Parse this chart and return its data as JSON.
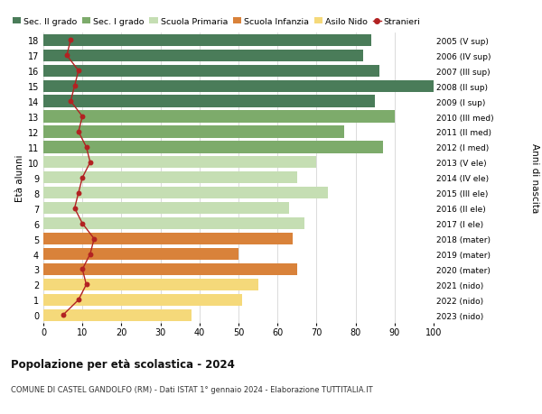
{
  "ages": [
    18,
    17,
    16,
    15,
    14,
    13,
    12,
    11,
    10,
    9,
    8,
    7,
    6,
    5,
    4,
    3,
    2,
    1,
    0
  ],
  "anni_nascita": [
    "2005 (V sup)",
    "2006 (IV sup)",
    "2007 (III sup)",
    "2008 (II sup)",
    "2009 (I sup)",
    "2010 (III med)",
    "2011 (II med)",
    "2012 (I med)",
    "2013 (V ele)",
    "2014 (IV ele)",
    "2015 (III ele)",
    "2016 (II ele)",
    "2017 (I ele)",
    "2018 (mater)",
    "2019 (mater)",
    "2020 (mater)",
    "2021 (nido)",
    "2022 (nido)",
    "2023 (nido)"
  ],
  "bar_values": [
    84,
    82,
    86,
    100,
    85,
    90,
    77,
    87,
    70,
    65,
    73,
    63,
    67,
    64,
    50,
    65,
    55,
    51,
    38
  ],
  "bar_colors": [
    "#4a7c59",
    "#4a7c59",
    "#4a7c59",
    "#4a7c59",
    "#4a7c59",
    "#7dab6b",
    "#7dab6b",
    "#7dab6b",
    "#c5deb3",
    "#c5deb3",
    "#c5deb3",
    "#c5deb3",
    "#c5deb3",
    "#d9823a",
    "#d9823a",
    "#d9823a",
    "#f5d97a",
    "#f5d97a",
    "#f5d97a"
  ],
  "stranieri": [
    7,
    6,
    9,
    8,
    7,
    10,
    9,
    11,
    12,
    10,
    9,
    8,
    10,
    13,
    12,
    10,
    11,
    9,
    5
  ],
  "legend_labels": [
    "Sec. II grado",
    "Sec. I grado",
    "Scuola Primaria",
    "Scuola Infanzia",
    "Asilo Nido",
    "Stranieri"
  ],
  "legend_colors": [
    "#4a7c59",
    "#7dab6b",
    "#c5deb3",
    "#d9823a",
    "#f5d97a",
    "#b22222"
  ],
  "ylabel_left": "Età alunni",
  "ylabel_right": "Anni di nascita",
  "xlim": [
    0,
    100
  ],
  "title": "Popolazione per età scolastica - 2024",
  "subtitle": "COMUNE DI CASTEL GANDOLFO (RM) - Dati ISTAT 1° gennaio 2024 - Elaborazione TUTTITALIA.IT",
  "bg_color": "#ffffff",
  "grid_color": "#cccccc"
}
